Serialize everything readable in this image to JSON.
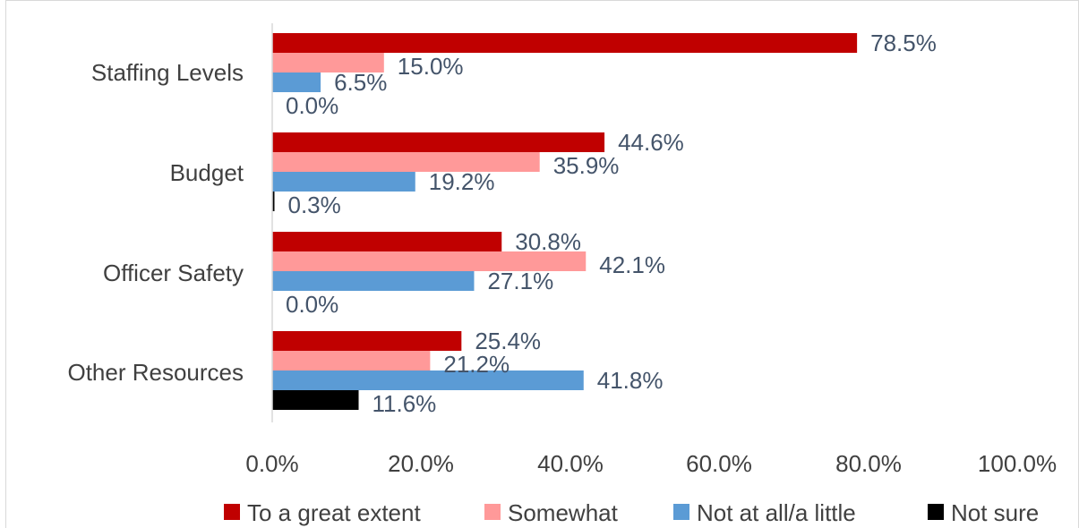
{
  "chart_data": {
    "type": "bar",
    "orientation": "horizontal",
    "categories": [
      "Staffing Levels",
      "Budget",
      "Officer Safety",
      "Other Resources"
    ],
    "series": [
      {
        "name": "To a great extent",
        "color": "#c00000",
        "values": [
          78.5,
          44.6,
          30.8,
          25.4
        ]
      },
      {
        "name": "Somewhat",
        "color": "#ff9999",
        "values": [
          15.0,
          35.9,
          42.1,
          21.2
        ]
      },
      {
        "name": "Not at all/a little",
        "color": "#5b9bd5",
        "values": [
          6.5,
          19.2,
          27.1,
          41.8
        ]
      },
      {
        "name": "Not sure",
        "color": "#000000",
        "values": [
          0.0,
          0.3,
          0.0,
          11.6
        ]
      }
    ],
    "data_labels": [
      [
        "78.5%",
        "15.0%",
        "6.5%",
        "0.0%"
      ],
      [
        "44.6%",
        "35.9%",
        "19.2%",
        "0.3%"
      ],
      [
        "30.8%",
        "42.1%",
        "27.1%",
        "0.0%"
      ],
      [
        "25.4%",
        "21.2%",
        "41.8%",
        "11.6%"
      ]
    ],
    "xlim": [
      0,
      100
    ],
    "x_ticks": [
      0,
      20,
      40,
      60,
      80,
      100
    ],
    "x_tick_labels": [
      "0.0%",
      "20.0%",
      "40.0%",
      "60.0%",
      "80.0%",
      "100.0%"
    ],
    "title": "",
    "xlabel": "",
    "ylabel": "",
    "grid": false,
    "legend_position": "bottom"
  }
}
